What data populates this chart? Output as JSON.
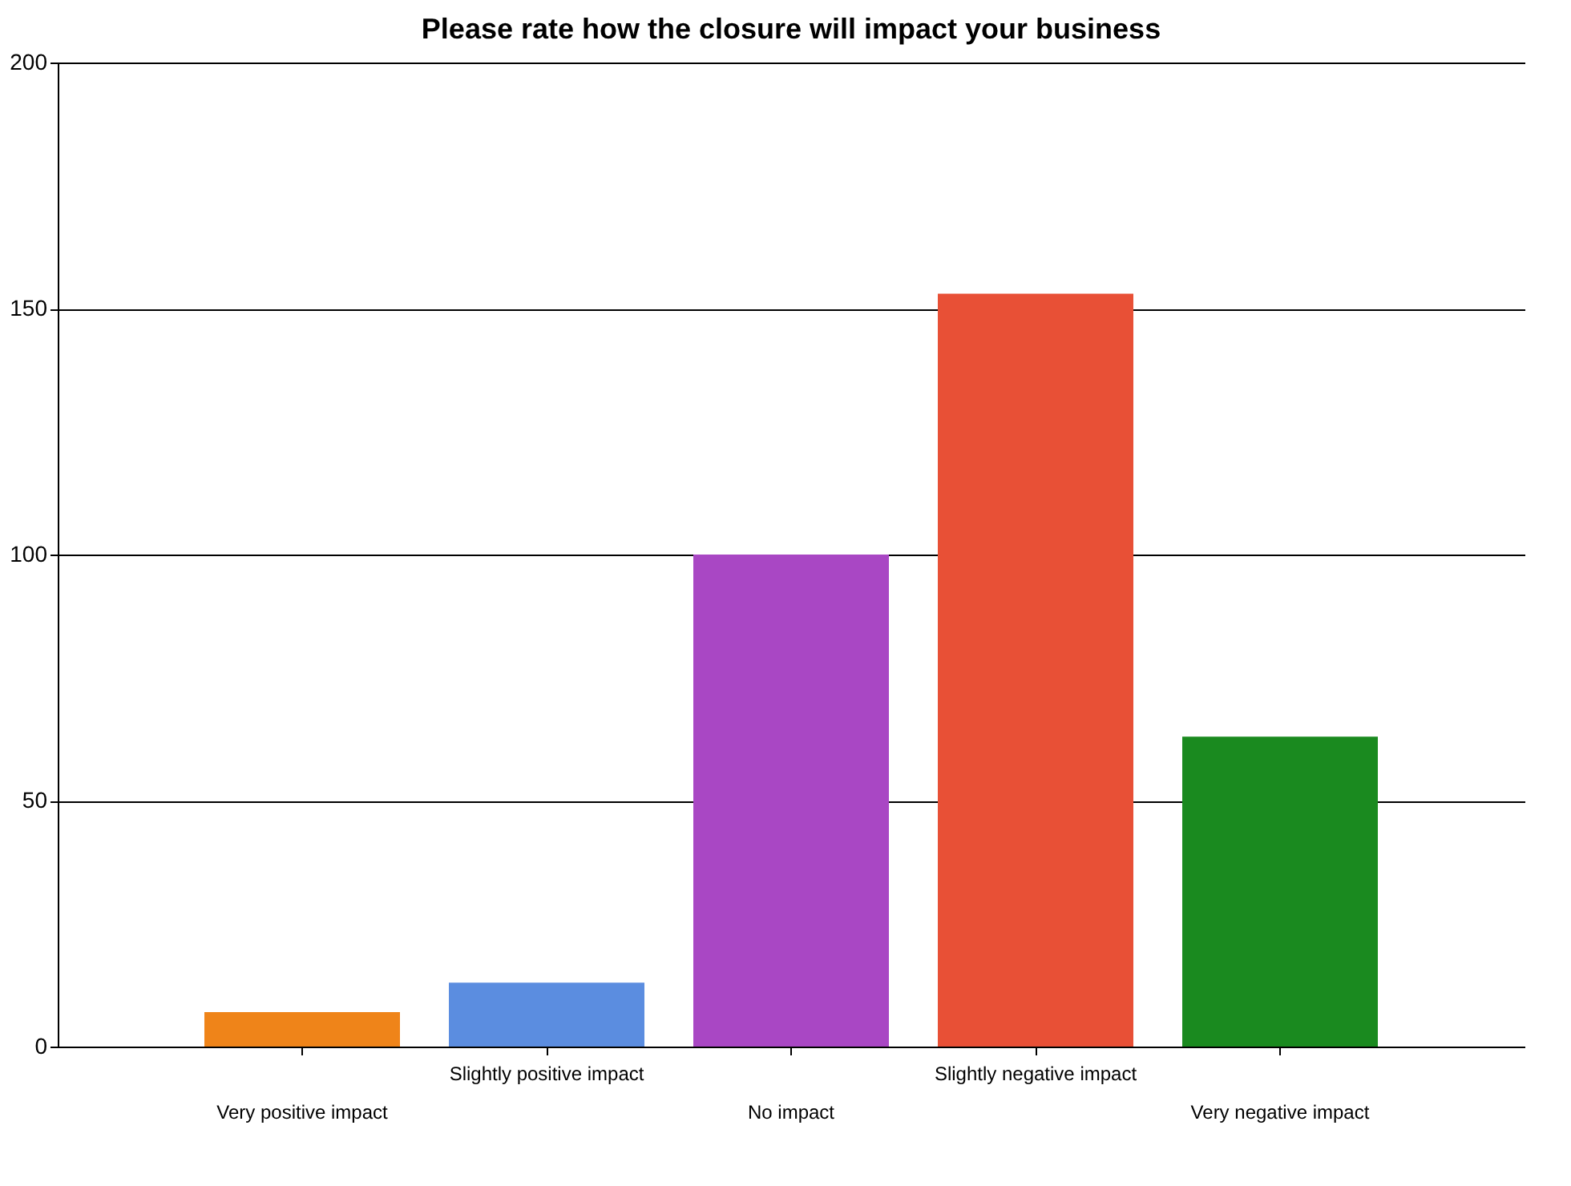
{
  "chart_data": {
    "type": "bar",
    "title": "Please rate how the closure will impact your business",
    "categories": [
      "Very positive impact",
      "Slightly positive impact",
      "No impact",
      "Slightly negative impact",
      "Very negative impact"
    ],
    "values": [
      7,
      13,
      100,
      153,
      63
    ],
    "colors": [
      "#ef8419",
      "#5b8de0",
      "#a947c4",
      "#e85036",
      "#1a8a1f"
    ],
    "ylim": [
      0,
      200
    ],
    "yticks": [
      0,
      50,
      100,
      150,
      200
    ],
    "grid": "y"
  }
}
